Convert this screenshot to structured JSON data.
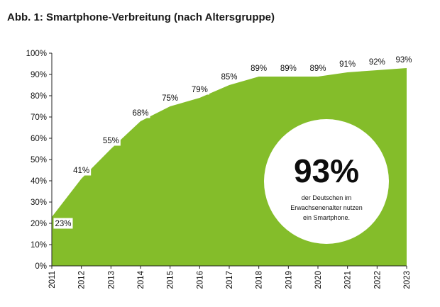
{
  "chart_data": {
    "type": "area",
    "title": "Abb. 1: Smartphone-Verbreitung (nach Altersgruppe)",
    "x": [
      "2011",
      "2012",
      "2013",
      "2014",
      "2015",
      "2016",
      "2017",
      "2018",
      "2019",
      "2020",
      "2021",
      "2022",
      "2023"
    ],
    "values": [
      23,
      41,
      55,
      68,
      75,
      79,
      85,
      89,
      89,
      89,
      91,
      92,
      93
    ],
    "labels": [
      "23%",
      "41%",
      "55%",
      "68%",
      "75%",
      "79%",
      "85%",
      "89%",
      "89%",
      "89%",
      "91%",
      "92%",
      "93%"
    ],
    "ylim": [
      0,
      100
    ],
    "yticks": [
      "0%",
      "10%",
      "20%",
      "30%",
      "40%",
      "50%",
      "60%",
      "70%",
      "80%",
      "90%",
      "100%"
    ],
    "color": "#84bd2a",
    "grid": false,
    "callout": {
      "value": "93%",
      "lines": [
        "der Deutschen im",
        "Erwachsenenalter nutzen",
        "ein Smartphone."
      ]
    }
  }
}
